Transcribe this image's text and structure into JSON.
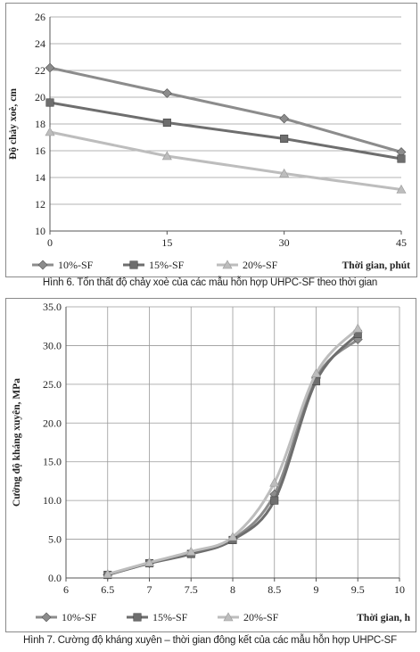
{
  "figures": [
    {
      "caption": "Hình 6. Tổn thất độ chảy xoè của các mẫu hỗn hợp UHPC-SF theo thời gian",
      "chart_data": {
        "type": "line",
        "title": "",
        "xlabel": "Thời gian, phút",
        "ylabel": "Độ chảy xoè, cm",
        "x": [
          0,
          15,
          30,
          45
        ],
        "xticks": [
          "0",
          "15",
          "30",
          "45"
        ],
        "xlim": [
          0,
          45
        ],
        "ylim": [
          10,
          26
        ],
        "yticks": [
          "10",
          "12",
          "14",
          "16",
          "18",
          "20",
          "22",
          "24",
          "26"
        ],
        "grid": true,
        "legend": "bottom",
        "series": [
          {
            "name": "10%-SF",
            "values": [
              22.2,
              20.3,
              18.4,
              15.9
            ],
            "color": "#8c8c8c",
            "marker": "diamond"
          },
          {
            "name": "15%-SF",
            "values": [
              19.6,
              18.1,
              16.9,
              15.4
            ],
            "color": "#6e6e6e",
            "marker": "square"
          },
          {
            "name": "20%-SF",
            "values": [
              17.4,
              15.6,
              14.3,
              13.1
            ],
            "color": "#bdbdbd",
            "marker": "triangle"
          }
        ]
      }
    },
    {
      "caption": "Hình 7. Cường độ kháng xuyên – thời gian đông kết của các mẫu hỗn hợp UHPC-SF",
      "chart_data": {
        "type": "line",
        "title": "",
        "xlabel": "Thời gian, h",
        "ylabel": "Cường độ kháng xuyên, MPa",
        "x": [
          6.5,
          7,
          7.5,
          8,
          8.5,
          9,
          9.5
        ],
        "xticks": [
          "6",
          "6.5",
          "7",
          "7.5",
          "8",
          "8.5",
          "9",
          "9.5",
          "10"
        ],
        "xlim": [
          6,
          10
        ],
        "ylim": [
          0,
          35
        ],
        "yticks": [
          "0.0",
          "5.0",
          "10.0",
          "15.0",
          "20.0",
          "25.0",
          "30.0",
          "35.0"
        ],
        "grid": true,
        "legend": "bottom",
        "series": [
          {
            "name": "10%-SF",
            "values": [
              0.4,
              1.9,
              3.2,
              5.0,
              10.8,
              25.8,
              30.8
            ],
            "color": "#8c8c8c",
            "marker": "diamond"
          },
          {
            "name": "15%-SF",
            "values": [
              0.4,
              1.9,
              3.1,
              4.9,
              10.0,
              25.4,
              31.5
            ],
            "color": "#6e6e6e",
            "marker": "square"
          },
          {
            "name": "20%-SF",
            "values": [
              0.5,
              2.0,
              3.4,
              5.3,
              12.3,
              26.4,
              32.2
            ],
            "color": "#bdbdbd",
            "marker": "triangle"
          }
        ]
      }
    }
  ]
}
